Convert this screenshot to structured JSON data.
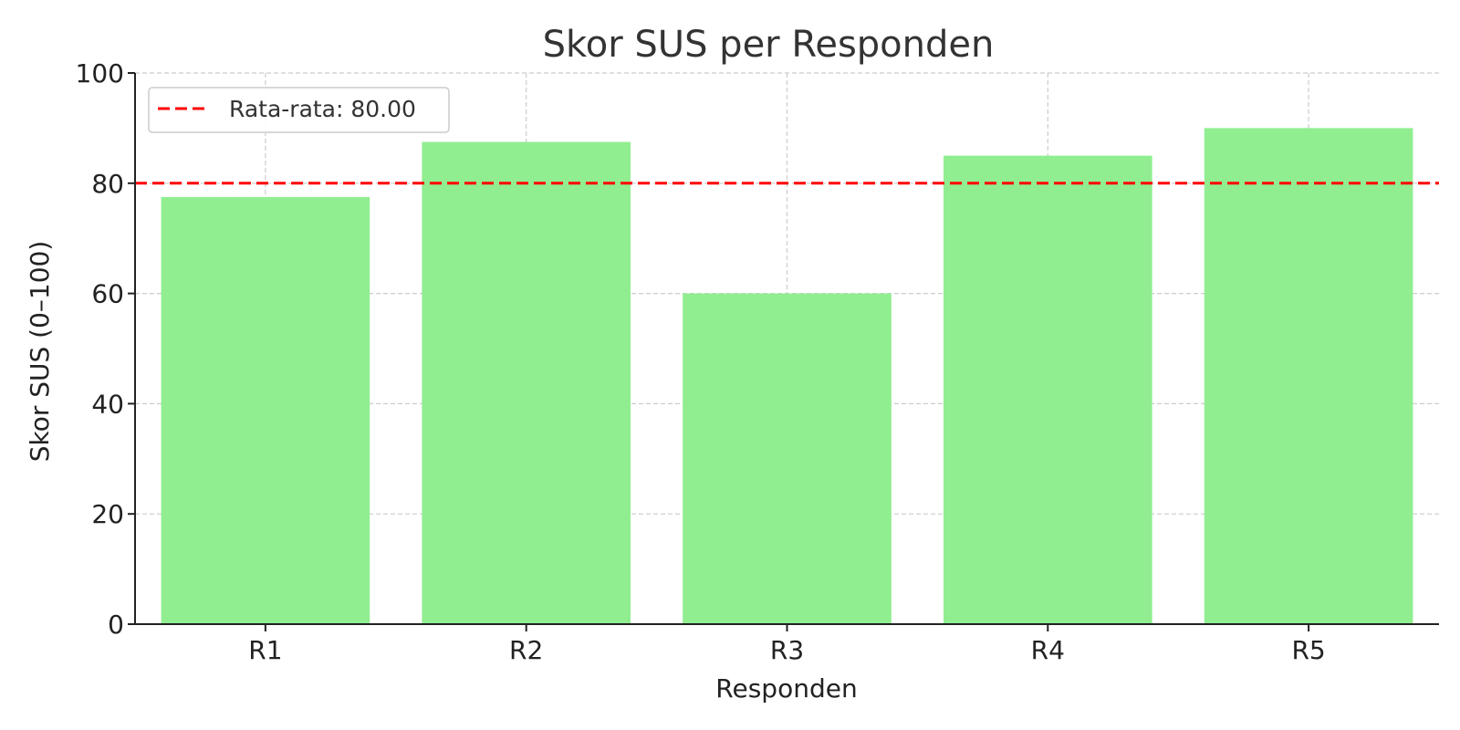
{
  "chart_data": {
    "type": "bar",
    "title": "Skor SUS per Responden",
    "xlabel": "Responden",
    "ylabel": "Skor SUS (0–100)",
    "categories": [
      "R1",
      "R2",
      "R3",
      "R4",
      "R5"
    ],
    "series": [
      {
        "values": [
          77.5,
          87.5,
          60,
          85,
          90
        ]
      }
    ],
    "ylim": [
      0,
      100
    ],
    "yticks": [
      0,
      20,
      40,
      60,
      80,
      100
    ],
    "grid": true,
    "bar_color": "#90ee90",
    "reference_line": {
      "label": "Rata-rata: 80.00",
      "value": 80,
      "color": "#ff0000",
      "style": "dashed"
    },
    "legend": {
      "placement": "top-left"
    }
  }
}
